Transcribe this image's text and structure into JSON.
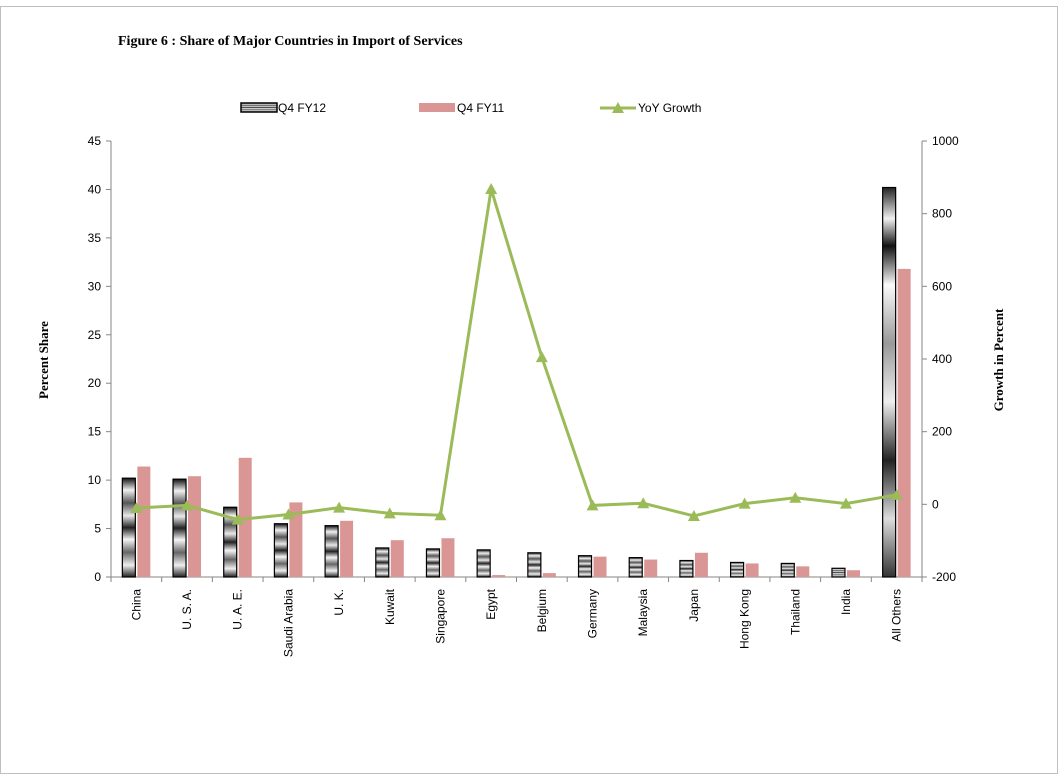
{
  "figure": {
    "title": "Figure  6 :  Share of Major Countries in Import of Services"
  },
  "chart_data": {
    "type": "bar",
    "categories": [
      "China",
      "U. S. A.",
      "U. A. E.",
      "Saudi Arabia",
      "U. K.",
      "Kuwait",
      "Singapore",
      "Egypt",
      "Belgium",
      "Germany",
      "Malaysia",
      "Japan",
      "Hong Kong",
      "Thailand",
      "India",
      "All Others"
    ],
    "series": [
      {
        "name": "Q4 FY12",
        "kind": "bar",
        "axis": "left",
        "color": "#7f7f7f",
        "values": [
          10.2,
          10.1,
          7.2,
          5.5,
          5.3,
          3.0,
          2.9,
          2.8,
          2.5,
          2.2,
          2.0,
          1.7,
          1.5,
          1.4,
          0.9,
          40.2
        ]
      },
      {
        "name": "Q4 FY11",
        "kind": "bar",
        "axis": "left",
        "color": "#d99694",
        "values": [
          11.4,
          10.4,
          12.3,
          7.7,
          5.8,
          3.8,
          4.0,
          0.2,
          0.4,
          2.1,
          1.8,
          2.5,
          1.4,
          1.1,
          0.7,
          31.8
        ]
      },
      {
        "name": "YoY Growth",
        "kind": "line",
        "axis": "right",
        "color": "#9bbb59",
        "values": [
          -10,
          -3,
          -42,
          -28,
          -9,
          -25,
          -30,
          868,
          405,
          -3,
          3,
          -32,
          2,
          18,
          2,
          26
        ]
      }
    ],
    "ylabel": "Percent Share",
    "y2label": "Growth in Percent",
    "ylim": [
      0,
      45
    ],
    "yticks": [
      0,
      5,
      10,
      15,
      20,
      25,
      30,
      35,
      40,
      45
    ],
    "y2lim": [
      -200,
      1000
    ],
    "y2ticks": [
      -200,
      0,
      200,
      400,
      600,
      800,
      1000
    ],
    "legend": "top",
    "grid": false
  }
}
